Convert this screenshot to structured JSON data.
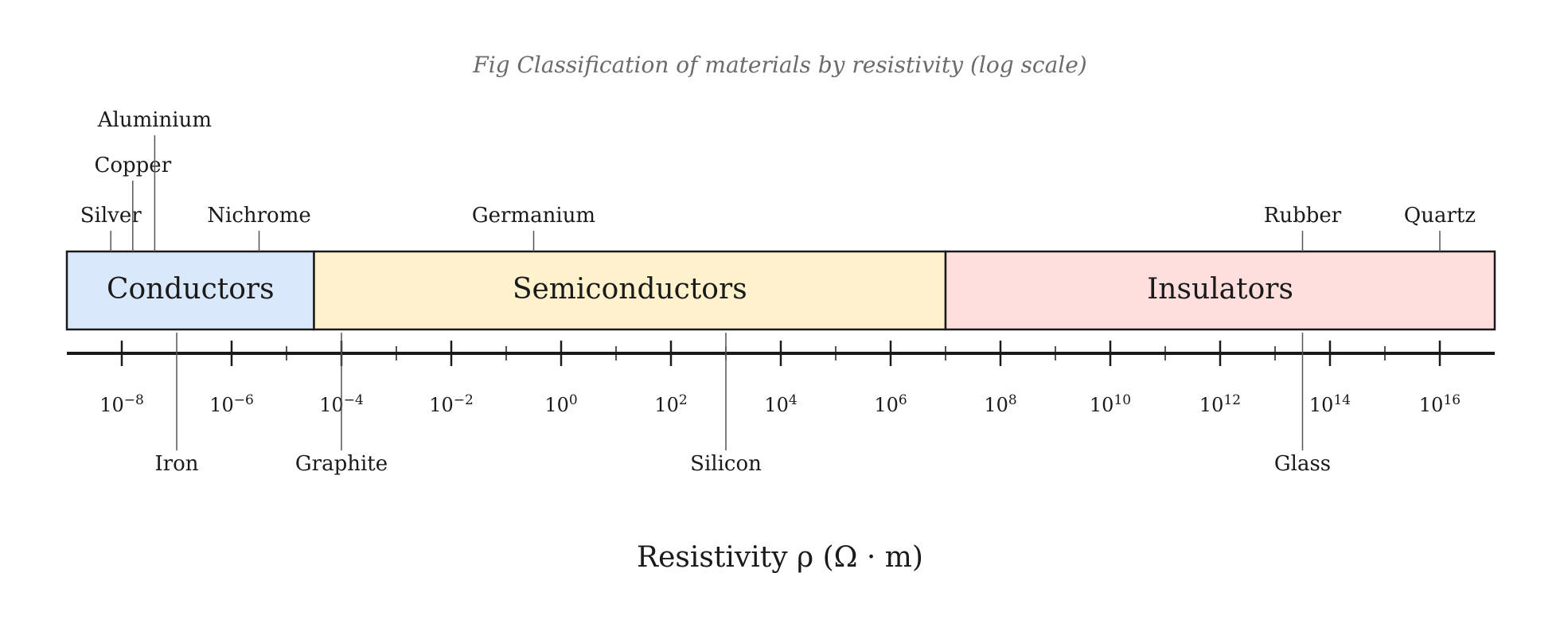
{
  "title": "Fig  Classification of materials by resistivity (log scale)",
  "axis": {
    "label": "Resistivity ρ (Ω · m)",
    "scale": "log10",
    "range": [
      -9,
      17
    ],
    "major_ticks": [
      -8,
      -6,
      -4,
      -2,
      0,
      2,
      4,
      6,
      8,
      10,
      12,
      14,
      16
    ],
    "minor_ticks": [
      -5,
      -3,
      -1,
      1,
      3,
      5,
      7,
      9,
      11,
      13,
      15
    ]
  },
  "bands": [
    {
      "name": "Conductors",
      "from": -9,
      "to": -4.5,
      "color": "#dae8fc"
    },
    {
      "name": "Semiconductors",
      "from": -4.5,
      "to": 7,
      "color": "#fff2cc"
    },
    {
      "name": "Insulators",
      "from": 7,
      "to": 17,
      "color": "#ffdede"
    }
  ],
  "materials_above": [
    {
      "name": "Silver",
      "log_rho": -8.2,
      "level": 0
    },
    {
      "name": "Copper",
      "log_rho": -7.8,
      "level": 1
    },
    {
      "name": "Aluminium",
      "log_rho": -7.4,
      "level": 2
    },
    {
      "name": "Nichrome",
      "log_rho": -5.5,
      "level": 0
    },
    {
      "name": "Germanium",
      "log_rho": -0.5,
      "level": 0
    },
    {
      "name": "Rubber",
      "log_rho": 13.5,
      "level": 0
    },
    {
      "name": "Quartz",
      "log_rho": 16.0,
      "level": 0
    }
  ],
  "materials_below": [
    {
      "name": "Iron",
      "log_rho": -7.0
    },
    {
      "name": "Graphite",
      "log_rho": -4.0
    },
    {
      "name": "Silicon",
      "log_rho": 3.0
    },
    {
      "name": "Glass",
      "log_rho": 13.5
    }
  ],
  "colors": {
    "ink": "#1a1a1a",
    "leader": "#555555",
    "title": "#6b6b6b"
  }
}
